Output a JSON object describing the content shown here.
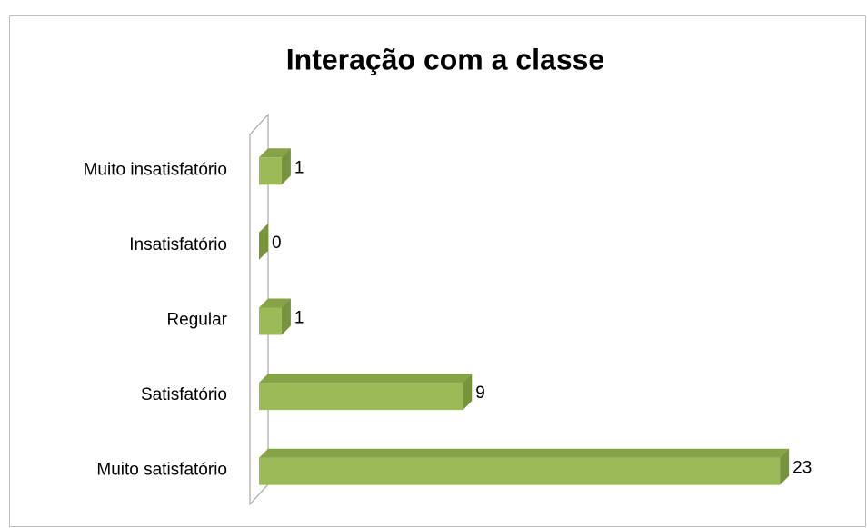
{
  "chart_data": {
    "type": "bar",
    "orientation": "horizontal",
    "title": "Interação com a classe",
    "categories": [
      "Muito insatisfatório",
      "Insatisfatório",
      "Regular",
      "Satisfatório",
      "Muito satisfatório"
    ],
    "values": [
      1,
      0,
      1,
      9,
      23
    ],
    "color": "#9bbb59",
    "xlim": [
      0,
      25
    ],
    "grid": false
  }
}
